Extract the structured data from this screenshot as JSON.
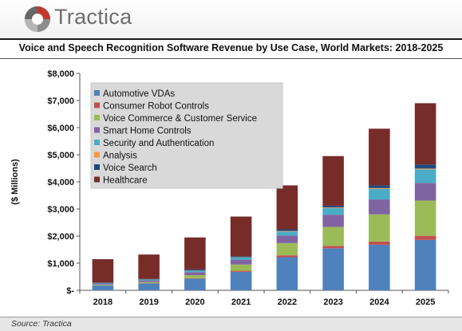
{
  "brand": {
    "name": "Tractica"
  },
  "chart_data": {
    "type": "bar",
    "stacked": true,
    "title": "Voice and Speech Recognition Software Revenue by Use Case, World Markets: 2018-2025",
    "ylabel": "($ Millions)",
    "xlabel": "",
    "ylim": [
      0,
      8000
    ],
    "yticks": [
      0,
      1000,
      2000,
      3000,
      4000,
      5000,
      6000,
      7000,
      8000
    ],
    "ytick_labels": [
      "$-",
      "$1,000",
      "$2,000",
      "$3,000",
      "$4,000",
      "$5,000",
      "$6,000",
      "$7,000",
      "$8,000"
    ],
    "categories": [
      "2018",
      "2019",
      "2020",
      "2021",
      "2022",
      "2023",
      "2024",
      "2025"
    ],
    "legend_position": "top-left inside",
    "grid": false,
    "series": [
      {
        "name": "Automotive VDAs",
        "color": "#4f81bd",
        "values": [
          180,
          250,
          430,
          680,
          1220,
          1550,
          1680,
          1860
        ]
      },
      {
        "name": "Consumer Robot Controls",
        "color": "#c0504d",
        "values": [
          5,
          10,
          20,
          40,
          70,
          90,
          120,
          150
        ]
      },
      {
        "name": "Voice Commerce & Customer Service",
        "color": "#9bbb59",
        "values": [
          25,
          45,
          110,
          230,
          450,
          700,
          1000,
          1300
        ]
      },
      {
        "name": "Smart Home Controls",
        "color": "#8064a2",
        "values": [
          40,
          60,
          110,
          180,
          280,
          450,
          550,
          650
        ]
      },
      {
        "name": "Security and Authentication",
        "color": "#4bacc6",
        "values": [
          15,
          30,
          50,
          80,
          150,
          250,
          390,
          500
        ]
      },
      {
        "name": "Analysis",
        "color": "#f79646",
        "values": [
          5,
          5,
          10,
          10,
          20,
          20,
          30,
          30
        ]
      },
      {
        "name": "Voice Search",
        "color": "#1f497d",
        "values": [
          20,
          20,
          40,
          40,
          60,
          60,
          100,
          150
        ]
      },
      {
        "name": "Healthcare",
        "color": "#772c2a",
        "values": [
          860,
          900,
          1180,
          1460,
          1620,
          1830,
          2090,
          2260
        ]
      }
    ]
  },
  "footer": {
    "source": "Source: Tractica"
  }
}
